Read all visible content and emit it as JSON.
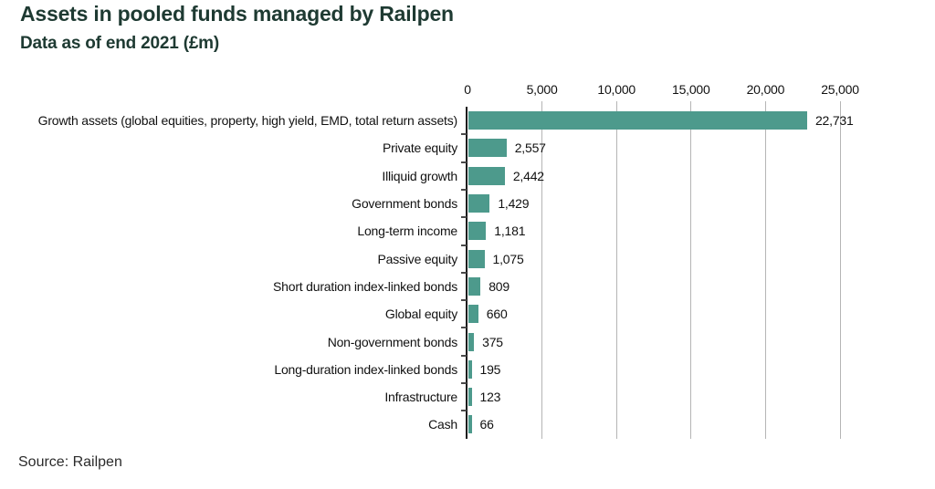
{
  "header": {
    "title": "Assets in pooled funds managed by Railpen",
    "subtitle": "Data as of end 2021 (£m)"
  },
  "chart_data": {
    "type": "bar",
    "orientation": "horizontal",
    "title": "Assets in pooled funds managed by Railpen",
    "subtitle": "Data as of end 2021 (£m)",
    "categories": [
      "Growth assets (global equities, property, high yield, EMD, total return assets)",
      "Private equity",
      "Illiquid growth",
      "Government bonds",
      "Long-term income",
      "Passive equity",
      "Short duration index-linked bonds",
      "Global equity",
      "Non-government bonds",
      "Long-duration index-linked bonds",
      "Infrastructure",
      "Cash"
    ],
    "values": [
      22731,
      2557,
      2442,
      1429,
      1181,
      1075,
      809,
      660,
      375,
      195,
      123,
      66
    ],
    "value_labels": [
      "22,731",
      "2,557",
      "2,442",
      "1,429",
      "1,181",
      "1,075",
      "809",
      "660",
      "375",
      "195",
      "123",
      "66"
    ],
    "x_ticks": [
      0,
      5000,
      10000,
      15000,
      20000,
      25000
    ],
    "x_tick_labels": [
      "0",
      "5,000",
      "10,000",
      "15,000",
      "20,000",
      "25,000"
    ],
    "xlim": [
      0,
      25000
    ],
    "xlabel": "",
    "ylabel": "",
    "grid": true,
    "legend": false
  },
  "colors": {
    "heading": "#1e3a32",
    "bar": "#4d9a8c",
    "gridline": "#b5b5b5",
    "axis": "#1a1a1a",
    "text": "#111111"
  },
  "footer": {
    "source": "Source: Railpen"
  }
}
